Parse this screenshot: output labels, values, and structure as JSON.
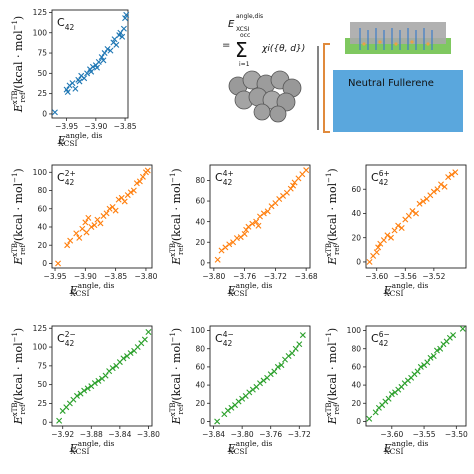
{
  "figure": {
    "ylabel_main": "E",
    "ylabel_sup": "xTB",
    "ylabel_sub": "ref",
    "ylabel_units": "/(kcal · mol",
    "ylabel_exp": "−1",
    "ylabel_close": ")",
    "xlabel_main": "E",
    "xlabel_sup": "angle, dis",
    "xlabel_sub": "XCSI"
  },
  "schematic": {
    "formula_lhs_main": "E",
    "formula_lhs_sup": "angle,dis",
    "formula_lhs_sub": "XCSI",
    "formula_eq": "=",
    "formula_sum_top": "occ",
    "formula_sum_sym": "Σ",
    "formula_sum_bottom": "i=1",
    "formula_rhs": "χi({θ, d})",
    "box_label": "Neutral Fullerene",
    "colors": {
      "fullerene_box": "#5aa7dd",
      "green_layer": "#7fc860",
      "gray_block": "#a8a8a8",
      "bracket": "#e08a3c"
    }
  },
  "chart_data": [
    {
      "type": "scatter",
      "label_base": "C",
      "label_sub": "42",
      "label_sup": "",
      "color": "#1f77b4",
      "xlim": [
        -3.975,
        -3.845
      ],
      "ylim": [
        -5,
        128
      ],
      "xticks": [
        -3.95,
        -3.9,
        -3.85
      ],
      "xtick_labels": [
        "−3.95",
        "−3.90",
        "−3.85"
      ],
      "yticks": [
        0,
        25,
        50,
        75,
        100,
        125
      ],
      "ytick_labels": [
        "0",
        "25",
        "50",
        "75",
        "100",
        "125"
      ],
      "points": [
        [
          -3.97,
          2
        ],
        [
          -3.95,
          30
        ],
        [
          -3.948,
          27
        ],
        [
          -3.945,
          35
        ],
        [
          -3.94,
          38
        ],
        [
          -3.935,
          31
        ],
        [
          -3.93,
          42
        ],
        [
          -3.928,
          40
        ],
        [
          -3.925,
          47
        ],
        [
          -3.92,
          44
        ],
        [
          -3.915,
          50
        ],
        [
          -3.91,
          55
        ],
        [
          -3.908,
          52
        ],
        [
          -3.905,
          58
        ],
        [
          -3.9,
          60
        ],
        [
          -3.898,
          57
        ],
        [
          -3.895,
          64
        ],
        [
          -3.89,
          70
        ],
        [
          -3.887,
          66
        ],
        [
          -3.885,
          75
        ],
        [
          -3.88,
          80
        ],
        [
          -3.875,
          78
        ],
        [
          -3.87,
          88
        ],
        [
          -3.868,
          92
        ],
        [
          -3.865,
          85
        ],
        [
          -3.86,
          97
        ],
        [
          -3.858,
          100
        ],
        [
          -3.855,
          95
        ],
        [
          -3.852,
          105
        ],
        [
          -3.85,
          118
        ],
        [
          -3.848,
          122
        ]
      ]
    },
    {
      "type": "scatter",
      "label_base": "C",
      "label_sub": "42",
      "label_sup": "2+",
      "color": "#ff7f0e",
      "xlim": [
        -3.955,
        -3.79
      ],
      "ylim": [
        -5,
        108
      ],
      "xticks": [
        -3.95,
        -3.9,
        -3.85,
        -3.8
      ],
      "xtick_labels": [
        "−3.95",
        "−3.90",
        "−3.85",
        "−3.80"
      ],
      "yticks": [
        0,
        20,
        40,
        60,
        80,
        100
      ],
      "ytick_labels": [
        "0",
        "20",
        "40",
        "60",
        "80",
        "100"
      ],
      "points": [
        [
          -3.945,
          0
        ],
        [
          -3.93,
          20
        ],
        [
          -3.925,
          25
        ],
        [
          -3.915,
          33
        ],
        [
          -3.91,
          28
        ],
        [
          -3.905,
          38
        ],
        [
          -3.9,
          45
        ],
        [
          -3.898,
          34
        ],
        [
          -3.895,
          50
        ],
        [
          -3.89,
          40
        ],
        [
          -3.885,
          42
        ],
        [
          -3.88,
          48
        ],
        [
          -3.875,
          44
        ],
        [
          -3.87,
          52
        ],
        [
          -3.865,
          55
        ],
        [
          -3.86,
          60
        ],
        [
          -3.855,
          62
        ],
        [
          -3.85,
          58
        ],
        [
          -3.845,
          70
        ],
        [
          -3.84,
          72
        ],
        [
          -3.835,
          68
        ],
        [
          -3.83,
          75
        ],
        [
          -3.825,
          78
        ],
        [
          -3.82,
          80
        ],
        [
          -3.815,
          88
        ],
        [
          -3.81,
          90
        ],
        [
          -3.805,
          95
        ],
        [
          -3.8,
          100
        ],
        [
          -3.797,
          102
        ]
      ]
    },
    {
      "type": "scatter",
      "label_base": "C",
      "label_sub": "42",
      "label_sup": "4+",
      "color": "#ff7f0e",
      "xlim": [
        -3.805,
        -3.675
      ],
      "ylim": [
        -5,
        95
      ],
      "xticks": [
        -3.8,
        -3.76,
        -3.72,
        -3.68
      ],
      "xtick_labels": [
        "−3.80",
        "−3.76",
        "−3.72",
        "−3.68"
      ],
      "yticks": [
        0,
        20,
        40,
        60,
        80
      ],
      "ytick_labels": [
        "0",
        "20",
        "40",
        "60",
        "80"
      ],
      "points": [
        [
          -3.795,
          3
        ],
        [
          -3.79,
          12
        ],
        [
          -3.785,
          15
        ],
        [
          -3.78,
          18
        ],
        [
          -3.775,
          20
        ],
        [
          -3.77,
          24
        ],
        [
          -3.765,
          25
        ],
        [
          -3.76,
          28
        ],
        [
          -3.758,
          32
        ],
        [
          -3.755,
          35
        ],
        [
          -3.75,
          38
        ],
        [
          -3.745,
          40
        ],
        [
          -3.742,
          36
        ],
        [
          -3.74,
          45
        ],
        [
          -3.735,
          48
        ],
        [
          -3.73,
          50
        ],
        [
          -3.725,
          55
        ],
        [
          -3.72,
          58
        ],
        [
          -3.715,
          62
        ],
        [
          -3.71,
          65
        ],
        [
          -3.705,
          68
        ],
        [
          -3.7,
          72
        ],
        [
          -3.697,
          75
        ],
        [
          -3.695,
          78
        ],
        [
          -3.69,
          82
        ],
        [
          -3.685,
          86
        ],
        [
          -3.68,
          90
        ]
      ]
    },
    {
      "type": "scatter",
      "label_base": "C",
      "label_sub": "42",
      "label_sup": "6+",
      "color": "#ff7f0e",
      "xlim": [
        -3.615,
        -3.475
      ],
      "ylim": [
        -5,
        80
      ],
      "xticks": [
        -3.6,
        -3.56,
        -3.52
      ],
      "xtick_labels": [
        "−3.60",
        "−3.56",
        "−3.52"
      ],
      "yticks": [
        0,
        20,
        40,
        60
      ],
      "ytick_labels": [
        "0",
        "20",
        "40",
        "60"
      ],
      "points": [
        [
          -3.61,
          0
        ],
        [
          -3.605,
          5
        ],
        [
          -3.6,
          8
        ],
        [
          -3.598,
          12
        ],
        [
          -3.595,
          15
        ],
        [
          -3.59,
          18
        ],
        [
          -3.585,
          22
        ],
        [
          -3.58,
          20
        ],
        [
          -3.575,
          26
        ],
        [
          -3.57,
          30
        ],
        [
          -3.565,
          28
        ],
        [
          -3.56,
          35
        ],
        [
          -3.555,
          38
        ],
        [
          -3.55,
          42
        ],
        [
          -3.545,
          40
        ],
        [
          -3.54,
          48
        ],
        [
          -3.535,
          50
        ],
        [
          -3.53,
          52
        ],
        [
          -3.525,
          55
        ],
        [
          -3.52,
          58
        ],
        [
          -3.515,
          60
        ],
        [
          -3.51,
          64
        ],
        [
          -3.505,
          62
        ],
        [
          -3.5,
          70
        ],
        [
          -3.495,
          72
        ],
        [
          -3.49,
          74
        ]
      ]
    },
    {
      "type": "scatter",
      "label_base": "C",
      "label_sub": "42",
      "label_sup": "2−",
      "color": "#2ca02c",
      "xlim": [
        -3.935,
        -3.795
      ],
      "ylim": [
        -5,
        128
      ],
      "xticks": [
        -3.92,
        -3.88,
        -3.84,
        -3.8
      ],
      "xtick_labels": [
        "−3.92",
        "−3.88",
        "−3.84",
        "−3.80"
      ],
      "yticks": [
        0,
        25,
        50,
        75,
        100,
        125
      ],
      "ytick_labels": [
        "0",
        "25",
        "50",
        "75",
        "100",
        "125"
      ],
      "points": [
        [
          -3.925,
          2
        ],
        [
          -3.92,
          15
        ],
        [
          -3.915,
          20
        ],
        [
          -3.91,
          25
        ],
        [
          -3.905,
          30
        ],
        [
          -3.9,
          35
        ],
        [
          -3.895,
          38
        ],
        [
          -3.89,
          42
        ],
        [
          -3.885,
          45
        ],
        [
          -3.88,
          48
        ],
        [
          -3.875,
          52
        ],
        [
          -3.87,
          55
        ],
        [
          -3.865,
          58
        ],
        [
          -3.86,
          62
        ],
        [
          -3.855,
          68
        ],
        [
          -3.85,
          72
        ],
        [
          -3.845,
          75
        ],
        [
          -3.84,
          80
        ],
        [
          -3.835,
          85
        ],
        [
          -3.83,
          88
        ],
        [
          -3.825,
          92
        ],
        [
          -3.82,
          95
        ],
        [
          -3.815,
          100
        ],
        [
          -3.81,
          105
        ],
        [
          -3.805,
          110
        ],
        [
          -3.8,
          120
        ]
      ]
    },
    {
      "type": "scatter",
      "label_base": "C",
      "label_sub": "42",
      "label_sup": "4−",
      "color": "#2ca02c",
      "xlim": [
        -3.845,
        -3.705
      ],
      "ylim": [
        -5,
        105
      ],
      "xticks": [
        -3.84,
        -3.8,
        -3.76,
        -3.72
      ],
      "xtick_labels": [
        "−3.84",
        "−3.80",
        "−3.76",
        "−3.72"
      ],
      "yticks": [
        0,
        20,
        40,
        60,
        80,
        100
      ],
      "ytick_labels": [
        "0",
        "20",
        "40",
        "60",
        "80",
        "100"
      ],
      "points": [
        [
          -3.835,
          0
        ],
        [
          -3.825,
          8
        ],
        [
          -3.82,
          12
        ],
        [
          -3.815,
          15
        ],
        [
          -3.81,
          18
        ],
        [
          -3.805,
          22
        ],
        [
          -3.8,
          25
        ],
        [
          -3.795,
          28
        ],
        [
          -3.79,
          32
        ],
        [
          -3.785,
          35
        ],
        [
          -3.78,
          38
        ],
        [
          -3.775,
          42
        ],
        [
          -3.77,
          45
        ],
        [
          -3.765,
          48
        ],
        [
          -3.76,
          52
        ],
        [
          -3.755,
          55
        ],
        [
          -3.75,
          60
        ],
        [
          -3.745,
          62
        ],
        [
          -3.74,
          68
        ],
        [
          -3.735,
          72
        ],
        [
          -3.73,
          75
        ],
        [
          -3.725,
          80
        ],
        [
          -3.72,
          85
        ],
        [
          -3.715,
          95
        ]
      ]
    },
    {
      "type": "scatter",
      "label_base": "C",
      "label_sub": "42",
      "label_sup": "6−",
      "color": "#2ca02c",
      "xlim": [
        -3.64,
        -3.485
      ],
      "ylim": [
        -5,
        105
      ],
      "xticks": [
        -3.6,
        -3.55,
        -3.5
      ],
      "xtick_labels": [
        "−3.60",
        "−3.55",
        "−3.50"
      ],
      "yticks": [
        0,
        20,
        40,
        60,
        80,
        100
      ],
      "ytick_labels": [
        "0",
        "20",
        "40",
        "60",
        "80",
        "100"
      ],
      "points": [
        [
          -3.635,
          3
        ],
        [
          -3.625,
          10
        ],
        [
          -3.62,
          15
        ],
        [
          -3.615,
          18
        ],
        [
          -3.61,
          22
        ],
        [
          -3.605,
          25
        ],
        [
          -3.6,
          30
        ],
        [
          -3.595,
          32
        ],
        [
          -3.59,
          35
        ],
        [
          -3.585,
          38
        ],
        [
          -3.58,
          42
        ],
        [
          -3.575,
          45
        ],
        [
          -3.57,
          48
        ],
        [
          -3.565,
          52
        ],
        [
          -3.56,
          55
        ],
        [
          -3.555,
          60
        ],
        [
          -3.55,
          62
        ],
        [
          -3.545,
          65
        ],
        [
          -3.54,
          70
        ],
        [
          -3.535,
          72
        ],
        [
          -3.53,
          78
        ],
        [
          -3.525,
          80
        ],
        [
          -3.52,
          85
        ],
        [
          -3.515,
          88
        ],
        [
          -3.51,
          92
        ],
        [
          -3.505,
          95
        ],
        [
          -3.49,
          102
        ]
      ]
    }
  ]
}
